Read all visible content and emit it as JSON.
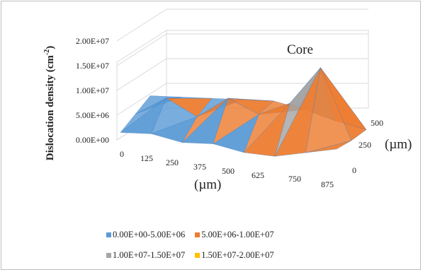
{
  "chart_data": {
    "type": "surface",
    "title": "",
    "ylabel": "Dislocation density (cm-2)",
    "xlabel": "(µm)",
    "depth_label": "(µm)",
    "zlim": [
      0,
      20000000
    ],
    "z_ticks": [
      "0.00E+00",
      "5.00E+06",
      "1.00E+07",
      "1.50E+07",
      "2.00E+07"
    ],
    "x_ticks": [
      "0",
      "125",
      "250",
      "375",
      "500",
      "625",
      "750",
      "875"
    ],
    "y_ticks": [
      "0",
      "250",
      "500"
    ],
    "annotation": "Core",
    "z_values": [
      [
        1500000,
        2500000,
        2000000,
        3000000,
        2500000,
        3000000,
        5000000,
        7000000
      ],
      [
        2000000,
        6500000,
        4000000,
        9000000,
        7000000,
        10500000,
        19000000,
        5500000
      ],
      [
        2500000,
        3500000,
        4500000,
        5500000,
        6500000,
        6000000,
        5000000,
        4500000
      ]
    ],
    "series": [
      {
        "name": "0.00E+00-5.00E+06",
        "color": "#5b9bd5"
      },
      {
        "name": "5.00E+06-1.00E+07",
        "color": "#ed7d31"
      },
      {
        "name": "1.00E+07-1.50E+07",
        "color": "#a5a5a5"
      },
      {
        "name": "1.50E+07-2.00E+07",
        "color": "#ffc000"
      }
    ]
  }
}
